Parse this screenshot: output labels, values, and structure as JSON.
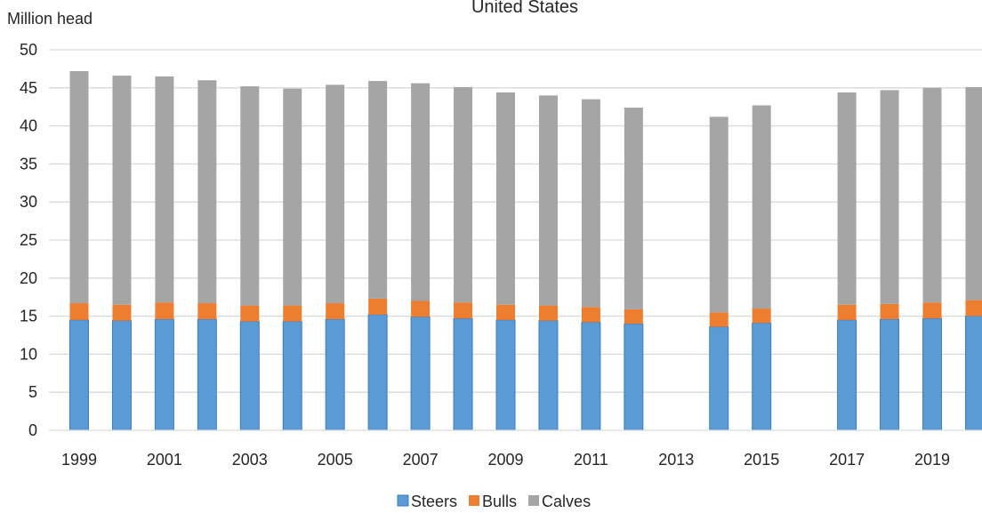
{
  "chart_data": {
    "type": "bar",
    "stacked": true,
    "title": "United States",
    "ylabel": "Million head",
    "xlabel": "",
    "ylim": [
      0,
      50
    ],
    "yticks": [
      0,
      5,
      10,
      15,
      20,
      25,
      30,
      35,
      40,
      45,
      50
    ],
    "grid": true,
    "legend_position": "bottom",
    "categories": [
      "1999",
      "2000",
      "2001",
      "2002",
      "2003",
      "2004",
      "2005",
      "2006",
      "2007",
      "2008",
      "2009",
      "2010",
      "2011",
      "2012",
      "2013",
      "2014",
      "2015",
      "2016",
      "2017",
      "2018",
      "2019",
      "2020"
    ],
    "x_tick_labels": [
      "1999",
      "2001",
      "2003",
      "2005",
      "2007",
      "2009",
      "2011",
      "2013",
      "2015",
      "2017",
      "2019"
    ],
    "series": [
      {
        "name": "Steers",
        "color": "#5b9bd5",
        "values": [
          14.5,
          14.4,
          14.6,
          14.6,
          14.3,
          14.3,
          14.6,
          15.2,
          14.9,
          14.7,
          14.5,
          14.4,
          14.2,
          14.0,
          null,
          13.6,
          14.1,
          null,
          14.5,
          14.6,
          14.7,
          15.0
        ]
      },
      {
        "name": "Bulls",
        "color": "#ed7d31",
        "values": [
          2.2,
          2.1,
          2.2,
          2.1,
          2.1,
          2.1,
          2.1,
          2.1,
          2.1,
          2.1,
          2.0,
          2.0,
          2.0,
          1.9,
          null,
          1.9,
          1.9,
          null,
          2.0,
          2.0,
          2.1,
          2.1
        ]
      },
      {
        "name": "Calves",
        "color": "#a5a5a5",
        "values": [
          30.5,
          30.1,
          29.7,
          29.3,
          28.8,
          28.5,
          28.7,
          28.6,
          28.6,
          28.3,
          27.9,
          27.6,
          27.3,
          26.5,
          null,
          25.7,
          26.7,
          null,
          27.9,
          28.1,
          28.2,
          28.0
        ]
      }
    ]
  }
}
